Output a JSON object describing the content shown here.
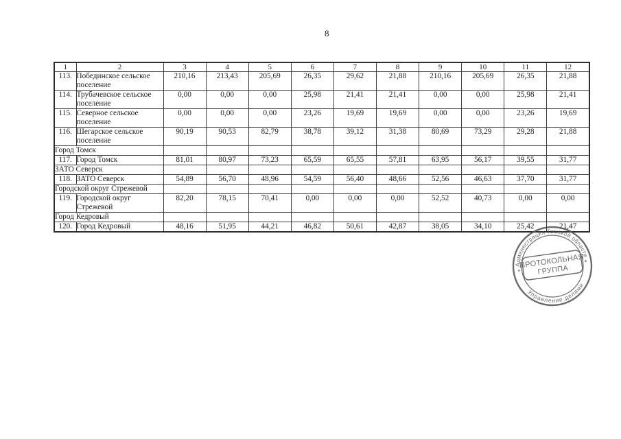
{
  "page": {
    "number": "8"
  },
  "table": {
    "header": [
      "1",
      "2",
      "3",
      "4",
      "5",
      "6",
      "7",
      "8",
      "9",
      "10",
      "11",
      "12"
    ],
    "rows": [
      {
        "type": "data",
        "num": "113.",
        "name": "Побединское сельское поселение",
        "values": [
          "210,16",
          "213,43",
          "205,69",
          "26,35",
          "29,62",
          "21,88",
          "210,16",
          "205,69",
          "26,35",
          "21,88"
        ]
      },
      {
        "type": "data",
        "num": "114.",
        "name": "Трубачевское сельское поселение",
        "values": [
          "0,00",
          "0,00",
          "0,00",
          "25,98",
          "21,41",
          "21,41",
          "0,00",
          "0,00",
          "25,98",
          "21,41"
        ]
      },
      {
        "type": "data",
        "num": "115.",
        "name": "Северное сельское поселение",
        "values": [
          "0,00",
          "0,00",
          "0,00",
          "23,26",
          "19,69",
          "19,69",
          "0,00",
          "0,00",
          "23,26",
          "19,69"
        ]
      },
      {
        "type": "data",
        "num": "116.",
        "name": "Шегарское сельское поселение",
        "values": [
          "90,19",
          "90,53",
          "82,79",
          "38,78",
          "39,12",
          "31,38",
          "80,69",
          "73,29",
          "29,28",
          "21,88"
        ]
      },
      {
        "type": "section",
        "name": "Город Томск"
      },
      {
        "type": "data",
        "num": "117.",
        "name": "Город Томск",
        "values": [
          "81,01",
          "80,97",
          "73,23",
          "65,59",
          "65,55",
          "57,81",
          "63,95",
          "56,17",
          "39,55",
          "31,77"
        ]
      },
      {
        "type": "section",
        "name": "ЗАТО Северск"
      },
      {
        "type": "data",
        "num": "118.",
        "name": "ЗАТО Северск",
        "values": [
          "54,89",
          "56,70",
          "48,96",
          "54,59",
          "56,40",
          "48,66",
          "52,56",
          "46,63",
          "37,70",
          "31,77"
        ]
      },
      {
        "type": "section",
        "name": "Городской округ Стрежевой"
      },
      {
        "type": "data",
        "num": "119.",
        "name": "Городской округ Стрежевой",
        "values": [
          "82,20",
          "78,15",
          "70,41",
          "0,00",
          "0,00",
          "0,00",
          "52,52",
          "40,73",
          "0,00",
          "0,00"
        ]
      },
      {
        "type": "section",
        "name": "Город Кедровый"
      },
      {
        "type": "data",
        "num": "120.",
        "name": "Город Кедровый",
        "values": [
          "48,16",
          "51,95",
          "44,21",
          "46,82",
          "50,61",
          "42,87",
          "38,05",
          "34,10",
          "25,42",
          "21,47"
        ]
      }
    ]
  },
  "stamp": {
    "arc_top": "Администрация Томской области",
    "arc_bottom": "Управление делами",
    "center_line1": "ПРОТОКОЛЬНАЯ",
    "center_line2": "ГРУППА",
    "side_mark": "*",
    "ink_color": "#4b4b4b"
  },
  "colors": {
    "background": "#ffffff",
    "text": "#1b1b1b",
    "border": "#3c3c3c"
  }
}
